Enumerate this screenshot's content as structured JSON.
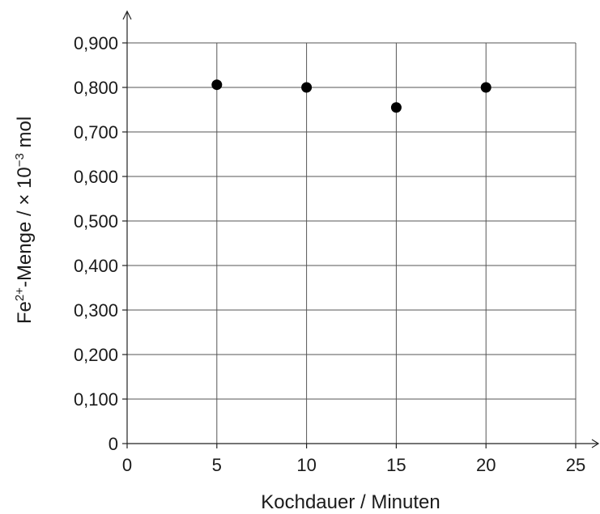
{
  "chart_data": {
    "type": "scatter",
    "title": "",
    "xlabel": "Kochdauer / Minuten",
    "ylabel": {
      "prefix": "Fe",
      "superscript": "2+",
      "middle": "-Menge / × 10",
      "exponent": "−3",
      "suffix": " mol"
    },
    "xlim": [
      0,
      25
    ],
    "ylim": [
      0,
      0.9
    ],
    "x_ticks": [
      0,
      5,
      10,
      15,
      20,
      25
    ],
    "x_tick_labels": [
      "0",
      "5",
      "10",
      "15",
      "20",
      "25"
    ],
    "y_ticks": [
      0,
      0.1,
      0.2,
      0.3,
      0.4,
      0.5,
      0.6,
      0.7,
      0.8,
      0.9
    ],
    "y_tick_labels": [
      "0",
      "0,100",
      "0,200",
      "0,300",
      "0,400",
      "0,500",
      "0,600",
      "0,700",
      "0,800",
      "0,900"
    ],
    "grid": true,
    "series": [
      {
        "x": [
          5,
          10,
          15,
          20
        ],
        "y": [
          0.806,
          0.8,
          0.755,
          0.8
        ]
      }
    ]
  }
}
